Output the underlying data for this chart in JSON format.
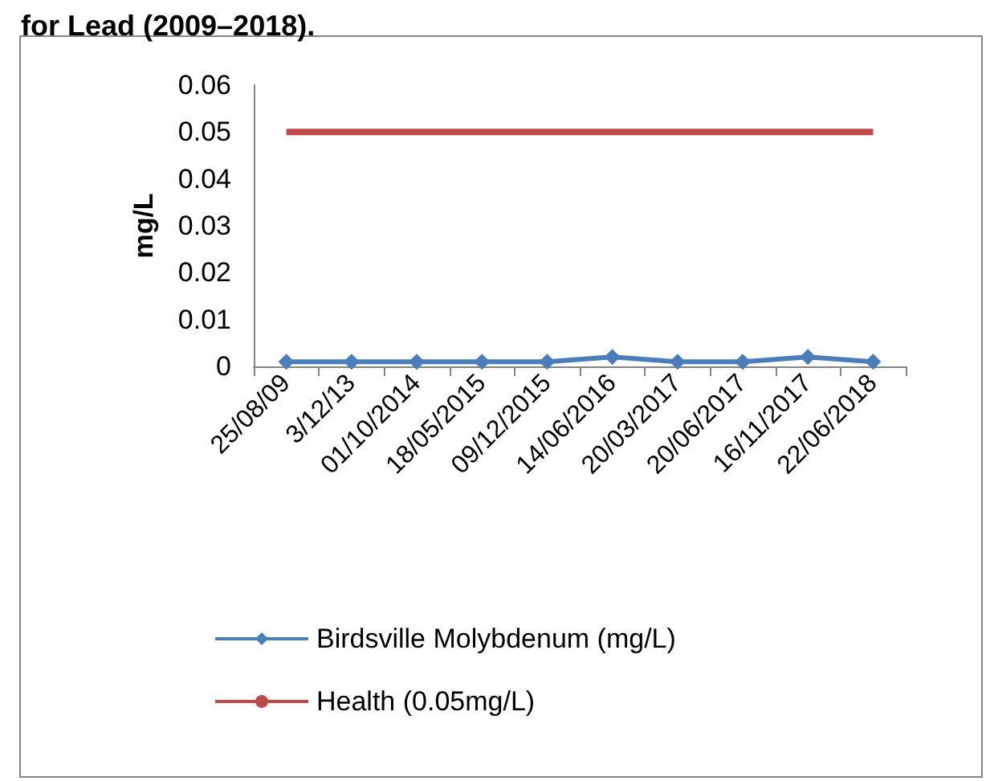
{
  "chart_data": {
    "type": "line",
    "title": "for Lead (2009–2018).",
    "ylabel": "mg/L",
    "categories": [
      "25/08/09",
      "3/12/13",
      "01/10/2014",
      "18/05/2015",
      "09/12/2015",
      "14/06/2016",
      "20/03/2017",
      "20/06/2017",
      "16/11/2017",
      "22/06/2018"
    ],
    "series": [
      {
        "name": "Birdsville Molybdenum (mg/L)",
        "color": "#4a7ebb",
        "marker": "diamond",
        "values": [
          0.001,
          0.001,
          0.001,
          0.001,
          0.001,
          0.002,
          0.001,
          0.001,
          0.002,
          0.001
        ]
      },
      {
        "name": "Health (0.05mg/L)",
        "color": "#be4b48",
        "marker": "none",
        "values": [
          0.05,
          0.05,
          0.05,
          0.05,
          0.05,
          0.05,
          0.05,
          0.05,
          0.05,
          0.05
        ]
      }
    ],
    "ylim": [
      0,
      0.06
    ],
    "yticks": [
      0,
      0.01,
      0.02,
      0.03,
      0.04,
      0.05,
      0.06
    ],
    "grid": false,
    "legend": "bottom left"
  }
}
